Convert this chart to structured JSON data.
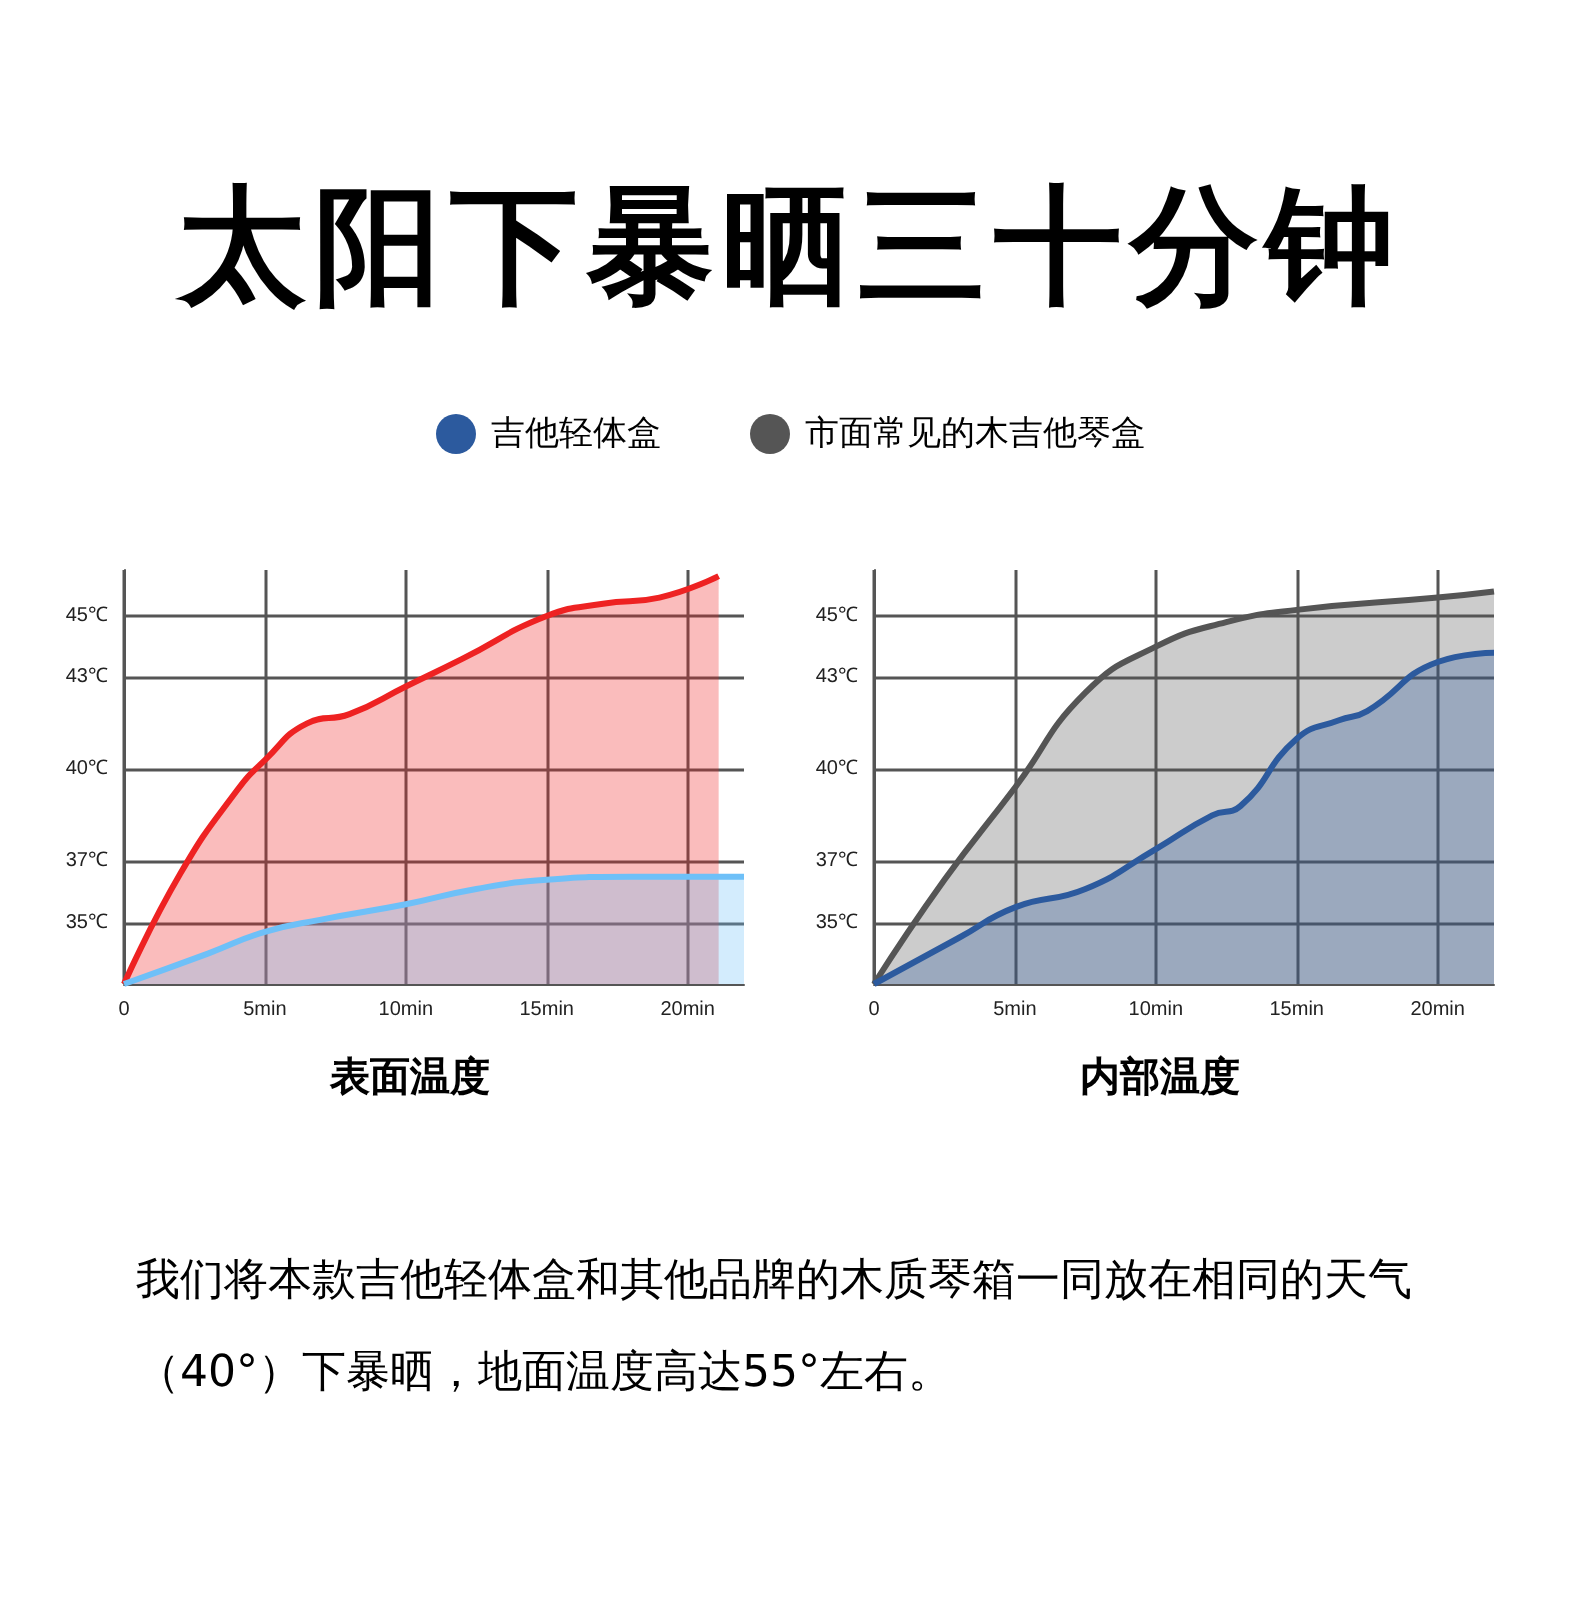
{
  "chart_data": [
    {
      "type": "area",
      "title": "太阳下暴晒三十分钟",
      "xlabel": "表面温度",
      "x": [
        0,
        2,
        4,
        5,
        6.5,
        8,
        10,
        12,
        15,
        17,
        19,
        21.1
      ],
      "xlim": [
        0,
        22
      ],
      "ylim": [
        33,
        46.5
      ],
      "xticks": [
        0,
        {
          "value": 5,
          "label": "5min"
        },
        {
          "value": 10,
          "label": "10min"
        },
        {
          "value": 15,
          "label": "15min"
        },
        {
          "value": 20,
          "label": "20min"
        }
      ],
      "yticks": [
        {
          "value": 35,
          "label": "35℃"
        },
        {
          "value": 37,
          "label": "37℃"
        },
        {
          "value": 40,
          "label": "40℃"
        },
        {
          "value": 43,
          "label": "43℃"
        },
        {
          "value": 45,
          "label": "45℃"
        }
      ],
      "grid": true,
      "series": [
        {
          "color": "#ee2222",
          "values": [
            33,
            36.6,
            39.3,
            40.3,
            41.5,
            41.8,
            42.7,
            43.6,
            45,
            45.4,
            45.6,
            46.3
          ]
        },
        {
          "color": "#6ec0f8",
          "x": [
            0,
            3,
            5,
            7,
            10,
            12.5,
            15,
            18,
            22
          ],
          "values": [
            33,
            34,
            34.7,
            35.1,
            35.6,
            36.1,
            36.4,
            36.5,
            36.5
          ]
        }
      ]
    },
    {
      "type": "area",
      "xlabel": "内部温度",
      "legend": "top",
      "x": [
        0,
        2.5,
        5,
        7.5,
        10,
        12.5,
        15,
        20,
        22
      ],
      "xlim": [
        0,
        22
      ],
      "ylim": [
        33,
        46.5
      ],
      "xticks": [
        0,
        {
          "value": 5,
          "label": "5min"
        },
        {
          "value": 10,
          "label": "10min"
        },
        {
          "value": 15,
          "label": "15min"
        },
        {
          "value": 20,
          "label": "20min"
        }
      ],
      "yticks": [
        {
          "value": 35,
          "label": "35℃"
        },
        {
          "value": 37,
          "label": "37℃"
        },
        {
          "value": 40,
          "label": "40℃"
        },
        {
          "value": 43,
          "label": "43℃"
        },
        {
          "value": 45,
          "label": "45℃"
        }
      ],
      "grid": true,
      "annotations": [
        "我们将本款吉他轻体盒和其他品牌的木质琴箱一同放在相同的天气（40°）下暴晒，地面温度高达55°左右。"
      ],
      "series": [
        {
          "name": "市面常见的木吉他琴盒",
          "color": "#555555",
          "values": [
            33,
            36.4,
            39.4,
            42.5,
            44,
            44.8,
            45.2,
            45.6,
            45.8
          ]
        },
        {
          "name": "吉他轻体盒",
          "color": "#2c5a9e",
          "x": [
            0,
            3,
            5,
            7.5,
            10,
            12,
            13,
            15,
            16.5,
            17.5,
            20,
            22
          ],
          "values": [
            33,
            34.5,
            35.5,
            36.1,
            37.4,
            38.5,
            38.8,
            41,
            41.6,
            41.9,
            43.5,
            43.8
          ]
        }
      ]
    }
  ]
}
